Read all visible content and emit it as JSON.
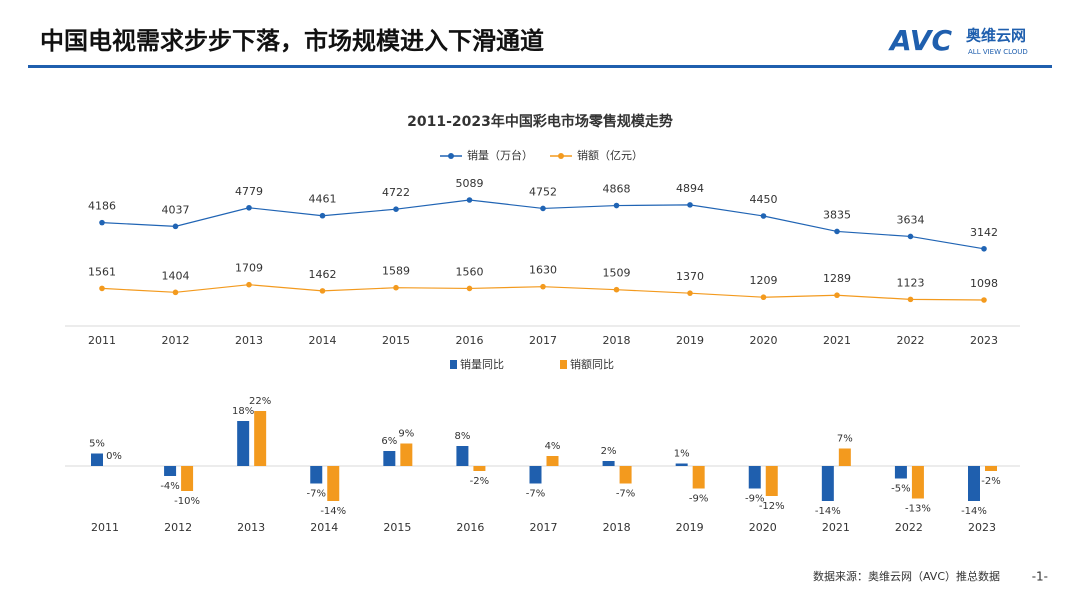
{
  "header": {
    "title": "中国电视需求步步下落，市场规模进入下滑通道",
    "logo_mark": "AVC",
    "logo_name": "奥维云网",
    "logo_sub": "ALL VIEW CLOUD"
  },
  "chart_data": [
    {
      "type": "line",
      "title": "2011-2023年中国彩电市场零售规模走势",
      "categories": [
        "2011",
        "2012",
        "2013",
        "2014",
        "2015",
        "2016",
        "2017",
        "2018",
        "2019",
        "2020",
        "2021",
        "2022",
        "2023"
      ],
      "series": [
        {
          "name": "销量（万台）",
          "color": "#2064b4",
          "values": [
            4186,
            4037,
            4779,
            4461,
            4722,
            5089,
            4752,
            4868,
            4894,
            4450,
            3835,
            3634,
            3142
          ]
        },
        {
          "name": "销额（亿元）",
          "color": "#f39a1e",
          "values": [
            1561,
            1404,
            1709,
            1462,
            1589,
            1560,
            1630,
            1509,
            1370,
            1209,
            1289,
            1123,
            1098
          ]
        }
      ]
    },
    {
      "type": "bar",
      "categories": [
        "2011",
        "2012",
        "2013",
        "2014",
        "2015",
        "2016",
        "2017",
        "2018",
        "2019",
        "2020",
        "2021",
        "2022",
        "2023"
      ],
      "series": [
        {
          "name": "销量同比",
          "color": "#1f5fae",
          "values": [
            5,
            -4,
            18,
            -7,
            6,
            8,
            -7,
            2,
            1,
            -9,
            -14,
            -5,
            -14
          ],
          "value_labels": [
            "5%",
            "-4%",
            "18%",
            "-7%",
            "6%",
            "8%",
            "-7%",
            "2%",
            "1%",
            "-9%",
            "-14%",
            "-5%",
            "-14%"
          ]
        },
        {
          "name": "销额同比",
          "color": "#f39a1e",
          "values": [
            0,
            -10,
            22,
            -14,
            9,
            -2,
            4,
            -7,
            -9,
            -12,
            7,
            -13,
            -2
          ],
          "value_labels": [
            "0%",
            "-10%",
            "22%",
            "-14%",
            "9%",
            "-2%",
            "4%",
            "-7%",
            "-9%",
            "-12%",
            "7%",
            "-13%",
            "-2%"
          ]
        }
      ]
    }
  ],
  "footer": {
    "source": "数据来源：奥维云网（AVC）推总数据",
    "page": "-1-"
  }
}
